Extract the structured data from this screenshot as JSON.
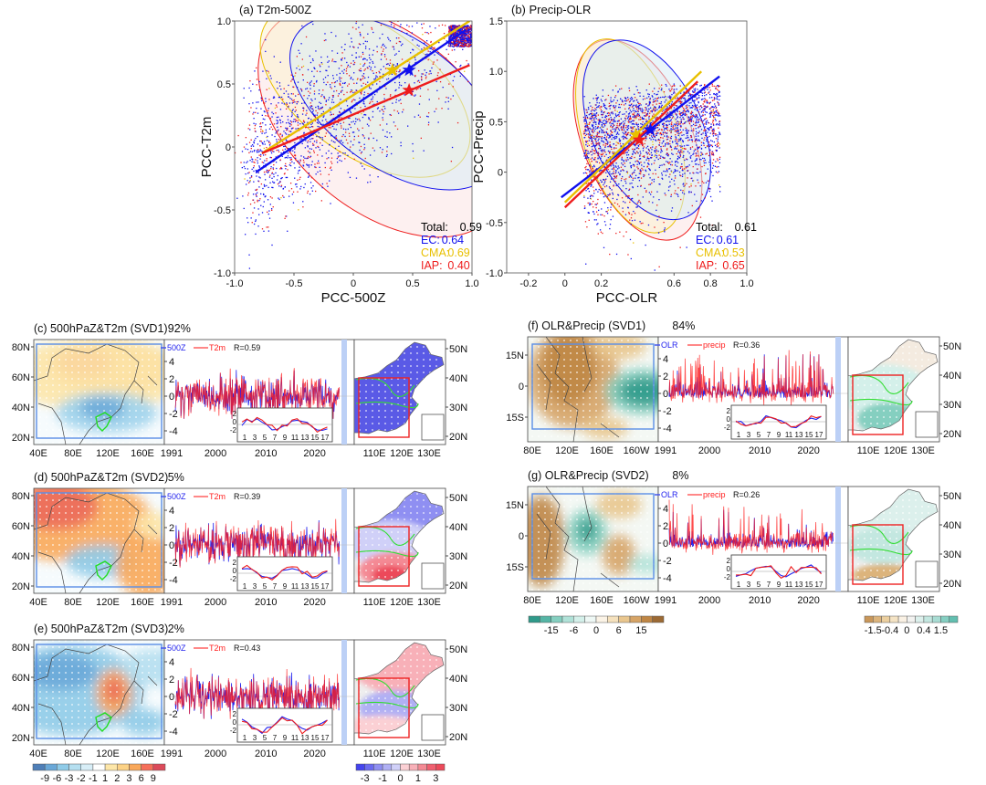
{
  "chart_data": [
    {
      "type": "scatter",
      "title": "(a) T2m-500Z",
      "xlabel": "PCC-500Z",
      "ylabel": "PCC-T2m",
      "xlim": [
        -1.0,
        1.0
      ],
      "ylim": [
        -1.0,
        1.0
      ],
      "xticks": [
        "-1.0",
        "-0.5",
        "0",
        "0.5",
        "1.0"
      ],
      "xtick_values": [
        -1.0,
        -0.5,
        0,
        0.5,
        1.0
      ],
      "yticks": [
        "1.0",
        "0.5",
        "0",
        "-0.5",
        "-1.0"
      ],
      "ytick_values": [
        1.0,
        0.5,
        0,
        -0.5,
        -1.0
      ],
      "legend_position": "bottom-right",
      "legend": [
        {
          "label": "Total:",
          "value": "0.59",
          "color": "#000000"
        },
        {
          "label": "EC:",
          "value": "0.64",
          "color": "#1010ee"
        },
        {
          "label": "CMA:",
          "value": "0.69",
          "color": "#e8c000"
        },
        {
          "label": "IAP:",
          "value": "0.40",
          "color": "#ee1c1c"
        }
      ],
      "series": [
        {
          "name": "EC",
          "color": "#1010ee",
          "mean": [
            0.47,
            0.61
          ],
          "fit": [
            [
              -0.82,
              -0.2
            ],
            [
              0.95,
              0.93
            ]
          ]
        },
        {
          "name": "CMA",
          "color": "#e8c000",
          "mean": [
            0.33,
            0.61
          ],
          "fit": [
            [
              -0.77,
              -0.05
            ],
            [
              0.98,
              1.0
            ]
          ]
        },
        {
          "name": "IAP",
          "color": "#ee1c1c",
          "mean": [
            0.47,
            0.45
          ],
          "fit": [
            [
              -0.77,
              -0.05
            ],
            [
              0.98,
              0.65
            ]
          ]
        }
      ]
    },
    {
      "type": "scatter",
      "title": "(b) Precip-OLR",
      "xlabel": "PCC-OLR",
      "ylabel": "PCC-Precip",
      "xlim": [
        -0.32,
        1.0
      ],
      "ylim": [
        -1.0,
        1.5
      ],
      "xticks": [
        "-0.2",
        "0",
        "0.2",
        "0.6",
        "0.8",
        "1.0"
      ],
      "xtick_values": [
        -0.2,
        0,
        0.2,
        0.6,
        0.8,
        1.0
      ],
      "yticks": [
        "1.5",
        "1.0",
        "0.5",
        "0",
        "-0.5",
        "-1.0"
      ],
      "ytick_values": [
        1.5,
        1.0,
        0.5,
        0,
        -0.5,
        -1.0
      ],
      "legend_position": "bottom-right",
      "legend": [
        {
          "label": "Total:",
          "value": "0.61",
          "color": "#000000"
        },
        {
          "label": "EC:",
          "value": "0.61",
          "color": "#1010ee"
        },
        {
          "label": "CMA:",
          "value": "0.53",
          "color": "#e8c000"
        },
        {
          "label": "IAP:",
          "value": "0.65",
          "color": "#ee1c1c"
        }
      ],
      "series": [
        {
          "name": "EC",
          "color": "#1010ee",
          "mean": [
            0.47,
            0.42
          ],
          "fit": [
            [
              -0.02,
              -0.25
            ],
            [
              0.85,
              0.95
            ]
          ]
        },
        {
          "name": "CMA",
          "color": "#e8c000",
          "mean": [
            0.39,
            0.37
          ],
          "fit": [
            [
              0.0,
              -0.3
            ],
            [
              0.75,
              1.0
            ]
          ]
        },
        {
          "name": "IAP",
          "color": "#ee1c1c",
          "mean": [
            0.41,
            0.32
          ],
          "fit": [
            [
              0.0,
              -0.35
            ],
            [
              0.73,
              0.9
            ]
          ]
        }
      ]
    }
  ],
  "svd_rows": [
    {
      "id": "c",
      "title": "(c) 500hPaZ&T2m (SVD1)",
      "pct": "92%",
      "legend": [
        "500Z",
        "T2m"
      ],
      "r": "R=0.59",
      "lat_labels": [
        "80N",
        "60N",
        "40N",
        "20N"
      ],
      "lon_labels": [
        "40E",
        "80E",
        "120E",
        "160E"
      ]
    },
    {
      "id": "d",
      "title": "(d) 500hPaZ&T2m (SVD2)",
      "pct": "5%",
      "legend": [
        "500Z",
        "T2m"
      ],
      "r": "R=0.39",
      "lat_labels": [
        "80N",
        "60N",
        "40N",
        "20N"
      ],
      "lon_labels": [
        "40E",
        "80E",
        "120E",
        "160E"
      ]
    },
    {
      "id": "e",
      "title": "(e) 500hPaZ&T2m (SVD3)",
      "pct": "2%",
      "legend": [
        "500Z",
        "T2m"
      ],
      "r": "R=0.43",
      "lat_labels": [
        "80N",
        "60N",
        "40N",
        "20N"
      ],
      "lon_labels": [
        "40E",
        "80E",
        "120E",
        "160E"
      ]
    },
    {
      "id": "f",
      "title": "(f) OLR&Precip (SVD1)",
      "pct": "84%",
      "legend": [
        "OLR",
        "precip"
      ],
      "r": "R=0.36",
      "lat_labels": [
        "15N",
        "0",
        "15S"
      ],
      "lon_labels": [
        "80E",
        "120E",
        "160E",
        "160W"
      ]
    },
    {
      "id": "g",
      "title": "(g) OLR&Precip (SVD2)",
      "pct": "8%",
      "legend": [
        "OLR",
        "precip"
      ],
      "r": "R=0.26",
      "lat_labels": [
        "15N",
        "0",
        "15S"
      ],
      "lon_labels": [
        "80E",
        "120E",
        "160E",
        "160W"
      ]
    }
  ],
  "timeseries_axis": {
    "y_ticks": [
      "4",
      "2",
      "0",
      "-2",
      "-4"
    ],
    "x_ticks": [
      "1991",
      "2000",
      "2010",
      "2020"
    ]
  },
  "inset_axis": {
    "y_ticks": [
      "2",
      "0",
      "-2"
    ],
    "x_ticks": [
      "1",
      "3",
      "5",
      "7",
      "9",
      "11",
      "13",
      "15",
      "17"
    ]
  },
  "china_axis": {
    "lat_labels": [
      "50N",
      "40N",
      "30N",
      "20N"
    ],
    "lon_labels": [
      "110E",
      "120E",
      "130E"
    ]
  },
  "colorbars": {
    "z500": {
      "labels": [
        "-9",
        "-6",
        "-3",
        "-2",
        "-1",
        "1",
        "2",
        "3",
        "6",
        "9"
      ],
      "colors": [
        "#4f7fb8",
        "#6aa8d8",
        "#8fcbe8",
        "#b5dff0",
        "#d8eef7",
        "#ffffff",
        "#fde6a8",
        "#fcd286",
        "#f9a85a",
        "#f66f5a",
        "#dc4a5a"
      ]
    },
    "t2m": {
      "labels": [
        "-3",
        "-1",
        "0",
        "1",
        "3"
      ],
      "colors": [
        "#4444ee",
        "#6a6af0",
        "#8f8ff2",
        "#b0b0f4",
        "#d0d0f8",
        "#fbd0d4",
        "#f8b0b8",
        "#f48a94",
        "#f06070",
        "#ec4a5a"
      ]
    },
    "olr": {
      "labels": [
        "-15",
        "-6",
        "0",
        "6",
        "15"
      ],
      "colors": [
        "#2f9a8a",
        "#55b5a5",
        "#85cfc0",
        "#b0e2d8",
        "#d4f0ea",
        "#eef8f5",
        "#fbf3e6",
        "#f5e1bd",
        "#e9c68e",
        "#d6a466",
        "#bf8645",
        "#9c6a34"
      ]
    },
    "precip": {
      "labels": [
        "-1.5",
        "-0.4",
        "0",
        "0.4",
        "1.5"
      ],
      "colors": [
        "#c9975a",
        "#dcb47c",
        "#ebcf9f",
        "#f4e3c4",
        "#faf1e4",
        "#f2f2f0",
        "#dcf0ec",
        "#c3e7e0",
        "#a8dcd3",
        "#85cfc2",
        "#62bfb0"
      ]
    }
  }
}
